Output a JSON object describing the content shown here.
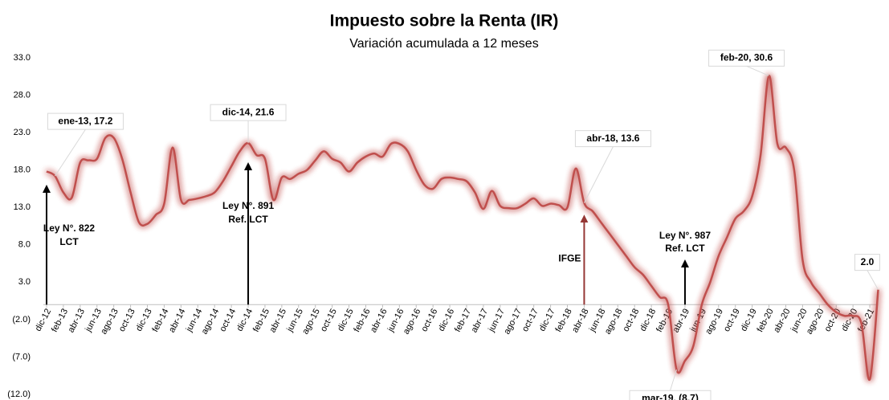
{
  "chart_data": {
    "type": "line",
    "title": "Impuesto sobre la Renta (IR)",
    "subtitle": "Variación acumulada a 12 meses",
    "categories": [
      "dic-12",
      null,
      "feb-13",
      null,
      "abr-13",
      null,
      "jun-13",
      null,
      "ago-13",
      null,
      "oct-13",
      null,
      "dic-13",
      null,
      "feb-14",
      null,
      "abr-14",
      null,
      "jun-14",
      null,
      "ago-14",
      null,
      "oct-14",
      null,
      "dic-14",
      null,
      "feb-15",
      null,
      "abr-15",
      null,
      "jun-15",
      null,
      "ago-15",
      null,
      "oct-15",
      null,
      "dic-15",
      null,
      "feb-16",
      null,
      "abr-16",
      null,
      "jun-16",
      null,
      "ago-16",
      null,
      "oct-16",
      null,
      "dic-16",
      null,
      "feb-17",
      null,
      "abr-17",
      null,
      "jun-17",
      null,
      "ago-17",
      null,
      "oct-17",
      null,
      "dic-17",
      null,
      "feb-18",
      null,
      "abr-18",
      null,
      "jun-18",
      null,
      "ago-18",
      null,
      "oct-18",
      null,
      "dic-18",
      null,
      "feb-19",
      null,
      "abr-19",
      null,
      "jun-19",
      null,
      "ago-19",
      null,
      "oct-19",
      null,
      "dic-19",
      null,
      "feb-20",
      null,
      "abr-20",
      null,
      "jun-20",
      null,
      "ago-20",
      null,
      "oct-20",
      null,
      "dic-20",
      null,
      "feb-21",
      null
    ],
    "values": [
      17.8,
      17.2,
      15.0,
      14.3,
      19.0,
      19.3,
      19.5,
      22.3,
      22.3,
      19.5,
      15.0,
      11.0,
      10.8,
      12.0,
      13.5,
      21.0,
      14.0,
      14.0,
      14.2,
      14.5,
      15.0,
      16.5,
      18.5,
      20.5,
      21.6,
      20.0,
      19.5,
      14.0,
      17.0,
      16.8,
      17.5,
      18.0,
      19.3,
      20.5,
      19.5,
      19.0,
      17.8,
      19.0,
      19.8,
      20.2,
      19.8,
      21.5,
      21.5,
      20.5,
      18.0,
      16.0,
      15.5,
      16.8,
      17.0,
      16.8,
      16.5,
      15.0,
      12.8,
      15.2,
      13.2,
      12.9,
      12.9,
      13.5,
      14.2,
      13.2,
      13.5,
      13.3,
      13.0,
      18.2,
      13.6,
      12.5,
      11.0,
      9.5,
      8.0,
      6.5,
      5.0,
      4.0,
      2.5,
      1.0,
      0.0,
      -8.7,
      -7.5,
      -5.5,
      0.0,
      3.0,
      6.5,
      9.0,
      11.5,
      12.5,
      14.5,
      20.0,
      30.6,
      21.5,
      21.0,
      18.0,
      6.0,
      3.0,
      1.5,
      0.0,
      -1.0,
      -1.5,
      -1.5,
      -2.5,
      -10.0,
      2.0
    ],
    "value_labels": [
      null,
      "ene-13, 17.2",
      null,
      null,
      null,
      null,
      null,
      null,
      null,
      null,
      null,
      null,
      null,
      null,
      null,
      null,
      null,
      null,
      null,
      null,
      null,
      null,
      null,
      null,
      "dic-14, 21.6",
      null,
      null,
      null,
      null,
      null,
      null,
      null,
      null,
      null,
      null,
      null,
      null,
      null,
      null,
      null,
      null,
      null,
      null,
      null,
      null,
      null,
      null,
      null,
      null,
      null,
      null,
      null,
      null,
      null,
      null,
      null,
      null,
      null,
      null,
      null,
      null,
      null,
      null,
      null,
      "abr-18, 13.6",
      null,
      null,
      null,
      null,
      null,
      null,
      null,
      null,
      null,
      null,
      "mar-19, (8.7)",
      null,
      null,
      null,
      null,
      null,
      null,
      null,
      null,
      null,
      null,
      "feb-20, 30.6",
      null,
      null,
      null,
      null,
      null,
      null,
      null,
      null,
      null,
      null,
      null,
      null,
      "2.0"
    ],
    "color": "#c0504d",
    "negative_label_color": "#c00000",
    "ylim": [
      -12,
      33
    ],
    "yticks": [
      {
        "value": 33,
        "label": "33.0"
      },
      {
        "value": 28,
        "label": "28.0"
      },
      {
        "value": 23,
        "label": "23.0"
      },
      {
        "value": 18,
        "label": "18.0"
      },
      {
        "value": 13,
        "label": "13.0"
      },
      {
        "value": 8,
        "label": "8.0"
      },
      {
        "value": 3,
        "label": "3.0"
      },
      {
        "value": -2,
        "label": "(2.0)"
      },
      {
        "value": -7,
        "label": "(7.0)"
      },
      {
        "value": -12,
        "label": "(12.0)"
      }
    ],
    "grid": false,
    "annotations": [
      {
        "lines": [
          "Ley N°. 822",
          "LCT"
        ],
        "at": "dic-12",
        "color": "#000000"
      },
      {
        "lines": [
          "Ley N°. 891",
          "Ref. LCT"
        ],
        "at": "dic-14",
        "color": "#000000"
      },
      {
        "lines": [
          "IFGE"
        ],
        "at": "abr-18",
        "color": "#953735"
      },
      {
        "lines": [
          "Ley N°. 987",
          "Ref. LCT"
        ],
        "at": "abr-19",
        "color": "#000000"
      }
    ]
  }
}
